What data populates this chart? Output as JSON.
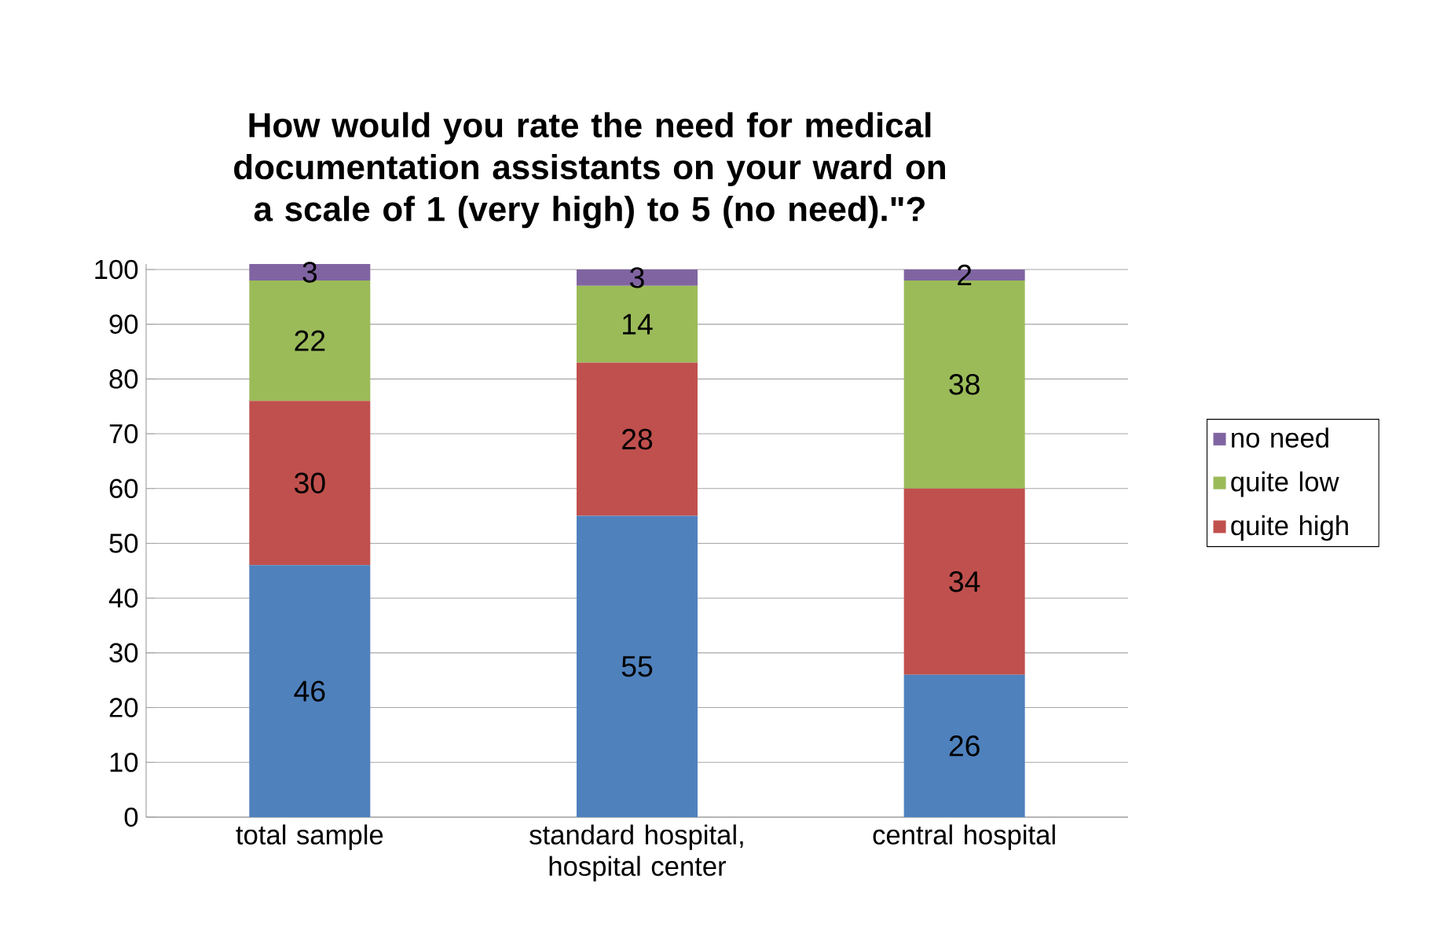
{
  "chart_data": {
    "type": "bar",
    "stacked": true,
    "title": "How would you rate the need for medical documentation assistants on your ward on a scale of 1 (very high) to 5 (no need).\"?",
    "categories": [
      "total sample",
      "standard hospital, hospital center",
      "central hospital"
    ],
    "series": [
      {
        "color": "#4f81bd",
        "values": [
          46,
          55,
          26
        ]
      },
      {
        "name": "quite high",
        "color": "#c0504d",
        "values": [
          30,
          28,
          34
        ]
      },
      {
        "name": "quite low",
        "color": "#9bbb59",
        "values": [
          22,
          14,
          38
        ]
      },
      {
        "name": "no need",
        "color": "#8064a2",
        "values": [
          3,
          3,
          2
        ]
      }
    ],
    "ylim": [
      0,
      101
    ],
    "yticks": [
      0,
      10,
      20,
      30,
      40,
      50,
      60,
      70,
      80,
      90,
      100
    ],
    "grid": "y",
    "legend": "right",
    "data_labels": true
  }
}
